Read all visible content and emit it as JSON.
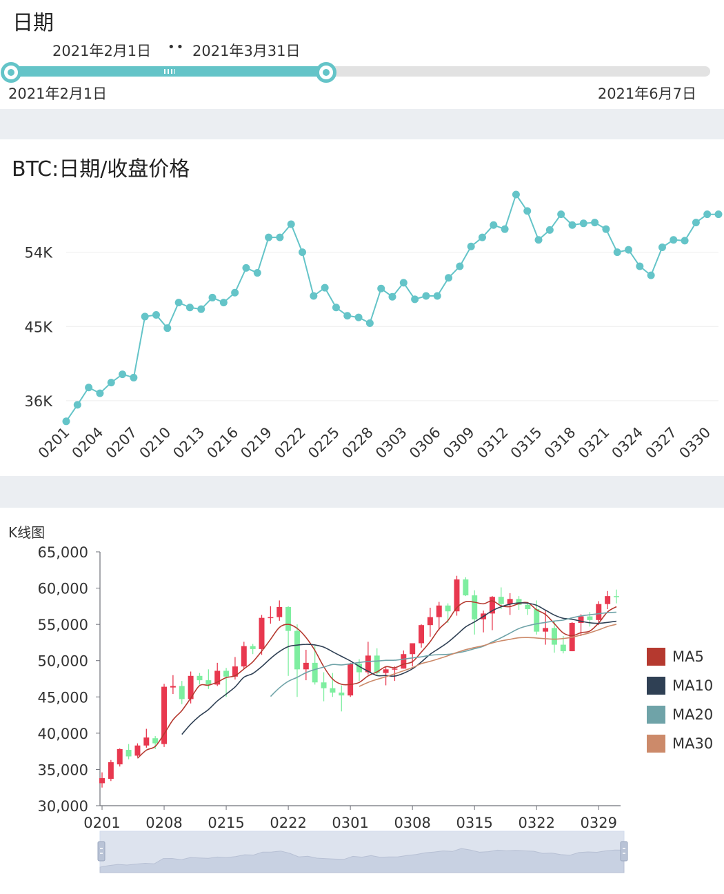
{
  "date_filter": {
    "title": "日期",
    "selected_start": "2021年2月1日",
    "range_separator": "••",
    "selected_end": "2021年3月31日",
    "min_label": "2021年2月1日",
    "max_label": "2021年6月7日",
    "selected_fraction": [
      0.0,
      0.45
    ]
  },
  "chart_data": [
    {
      "type": "line",
      "title": "BTC:日期/收盘价格",
      "color": "#64c4c8",
      "x": [
        "0201",
        "0202",
        "0203",
        "0204",
        "0205",
        "0206",
        "0207",
        "0208",
        "0209",
        "0210",
        "0211",
        "0212",
        "0213",
        "0214",
        "0215",
        "0216",
        "0217",
        "0218",
        "0219",
        "0220",
        "0221",
        "0222",
        "0223",
        "0224",
        "0225",
        "0226",
        "0227",
        "0228",
        "0301",
        "0302",
        "0303",
        "0304",
        "0305",
        "0306",
        "0307",
        "0308",
        "0309",
        "0310",
        "0311",
        "0312",
        "0313",
        "0314",
        "0315",
        "0316",
        "0317",
        "0318",
        "0319",
        "0320",
        "0321",
        "0322",
        "0323",
        "0324",
        "0325",
        "0326",
        "0327",
        "0328",
        "0329",
        "0330",
        "0331"
      ],
      "y": [
        33500,
        35500,
        37600,
        36900,
        38200,
        39200,
        38800,
        46200,
        46400,
        44800,
        47900,
        47300,
        47100,
        48500,
        47900,
        49100,
        52100,
        51500,
        55800,
        55800,
        57400,
        54000,
        48700,
        49700,
        47300,
        46300,
        46100,
        45400,
        49600,
        48600,
        50300,
        48300,
        48700,
        48700,
        50900,
        52300,
        54700,
        55800,
        57300,
        56800,
        61000,
        59000,
        55500,
        56700,
        58600,
        57300,
        57500,
        57600,
        56800,
        54000,
        54300,
        52300,
        51200,
        54600,
        55500,
        55400,
        57600,
        58600,
        58600
      ],
      "xticks": [
        "0201",
        "0204",
        "0207",
        "0210",
        "0213",
        "0216",
        "0219",
        "0222",
        "0225",
        "0228",
        "0303",
        "0306",
        "0309",
        "0312",
        "0315",
        "0318",
        "0321",
        "0324",
        "0327",
        "0330"
      ],
      "yticks": [
        36000,
        45000,
        54000
      ],
      "ytick_labels": [
        "36K",
        "45K",
        "54K"
      ],
      "ylim": [
        33400,
        62000
      ],
      "grid": true
    },
    {
      "type": "candlestick",
      "title": "K线图",
      "up_color": "#e8384f",
      "down_color": "#7eeea0",
      "categories": [
        "0201",
        "0202",
        "0203",
        "0204",
        "0205",
        "0206",
        "0207",
        "0208",
        "0209",
        "0210",
        "0211",
        "0212",
        "0213",
        "0214",
        "0215",
        "0216",
        "0217",
        "0218",
        "0219",
        "0220",
        "0221",
        "0222",
        "0223",
        "0224",
        "0225",
        "0226",
        "0227",
        "0228",
        "0301",
        "0302",
        "0303",
        "0304",
        "0305",
        "0306",
        "0307",
        "0308",
        "0309",
        "0310",
        "0311",
        "0312",
        "0313",
        "0314",
        "0315",
        "0316",
        "0317",
        "0318",
        "0319",
        "0320",
        "0321",
        "0322",
        "0323",
        "0324",
        "0325",
        "0326",
        "0327",
        "0328",
        "0329",
        "0330",
        "0331"
      ],
      "ohlc": [
        [
          33100,
          33800,
          32500,
          34600
        ],
        [
          33700,
          36000,
          33400,
          36300
        ],
        [
          35700,
          37800,
          35400,
          37900
        ],
        [
          37700,
          36800,
          36400,
          38500
        ],
        [
          36900,
          38300,
          36700,
          38600
        ],
        [
          38300,
          39400,
          38000,
          40600
        ],
        [
          39300,
          38600,
          37800,
          39600
        ],
        [
          38500,
          46400,
          38100,
          46800
        ],
        [
          46300,
          46500,
          45400,
          48000
        ],
        [
          46500,
          44700,
          44000,
          47200
        ],
        [
          44700,
          47900,
          44100,
          48500
        ],
        [
          47900,
          47300,
          46700,
          48300
        ],
        [
          47300,
          46700,
          46100,
          48800
        ],
        [
          46700,
          48600,
          46500,
          49700
        ],
        [
          48600,
          47800,
          45000,
          49000
        ],
        [
          47800,
          49200,
          47400,
          50500
        ],
        [
          49200,
          52000,
          48900,
          52600
        ],
        [
          52000,
          51600,
          50900,
          52300
        ],
        [
          51600,
          55900,
          50800,
          56300
        ],
        [
          55900,
          56000,
          55100,
          57500
        ],
        [
          56000,
          57400,
          55500,
          58300
        ],
        [
          57400,
          54100,
          47900,
          57500
        ],
        [
          54100,
          48800,
          45000,
          55000
        ],
        [
          48800,
          49700,
          47300,
          51500
        ],
        [
          49700,
          47000,
          46700,
          52000
        ],
        [
          47000,
          46200,
          44400,
          48400
        ],
        [
          46200,
          45600,
          45000,
          48300
        ],
        [
          45600,
          45200,
          43000,
          46600
        ],
        [
          45200,
          49600,
          45000,
          49700
        ],
        [
          49600,
          48400,
          47200,
          50200
        ],
        [
          48400,
          50700,
          48100,
          52600
        ],
        [
          50700,
          48300,
          48100,
          51700
        ],
        [
          48300,
          48800,
          46600,
          49200
        ],
        [
          48800,
          48900,
          47200,
          49200
        ],
        [
          48900,
          50900,
          48900,
          51400
        ],
        [
          50900,
          52400,
          49200,
          52400
        ],
        [
          52400,
          54900,
          51800,
          55000
        ],
        [
          54900,
          56000,
          53300,
          57300
        ],
        [
          56000,
          57600,
          54200,
          58100
        ],
        [
          57600,
          56800,
          55200,
          57900
        ],
        [
          56800,
          61200,
          56200,
          61700
        ],
        [
          61200,
          59000,
          58900,
          61500
        ],
        [
          59000,
          55700,
          53600,
          59700
        ],
        [
          55700,
          56500,
          53900,
          56900
        ],
        [
          56500,
          58800,
          54200,
          58900
        ],
        [
          58800,
          57800,
          57100,
          60100
        ],
        [
          57800,
          58500,
          56300,
          59300
        ],
        [
          58500,
          57700,
          57000,
          58900
        ],
        [
          57700,
          57100,
          56300,
          58100
        ],
        [
          57100,
          54000,
          53600,
          58300
        ],
        [
          54000,
          54500,
          52200,
          56900
        ],
        [
          54500,
          52200,
          51100,
          55400
        ],
        [
          52200,
          51300,
          51000,
          53400
        ],
        [
          51300,
          55200,
          51300,
          55300
        ],
        [
          55200,
          56100,
          53400,
          56400
        ],
        [
          56100,
          55600,
          54700,
          56700
        ],
        [
          55600,
          57800,
          54900,
          58200
        ],
        [
          57800,
          58900,
          57100,
          59600
        ],
        [
          58900,
          58800,
          57900,
          59800
        ]
      ],
      "ma_series": [
        {
          "name": "MA5",
          "color": "#b5392f"
        },
        {
          "name": "MA10",
          "color": "#2f4054"
        },
        {
          "name": "MA20",
          "color": "#6fa3a8"
        },
        {
          "name": "MA30",
          "color": "#cc8a6a"
        }
      ],
      "ylim": [
        30000,
        65000
      ],
      "yticks": [
        30000,
        35000,
        40000,
        45000,
        50000,
        55000,
        60000,
        65000
      ],
      "ytick_labels": [
        "30,000",
        "35,000",
        "40,000",
        "45,000",
        "50,000",
        "55,000",
        "60,000",
        "65,000"
      ],
      "xticks": [
        "0201",
        "0208",
        "0215",
        "0222",
        "0301",
        "0308",
        "0315",
        "0322",
        "0329"
      ],
      "legend_position": "right",
      "datazoom_range": [
        0,
        1
      ]
    }
  ]
}
